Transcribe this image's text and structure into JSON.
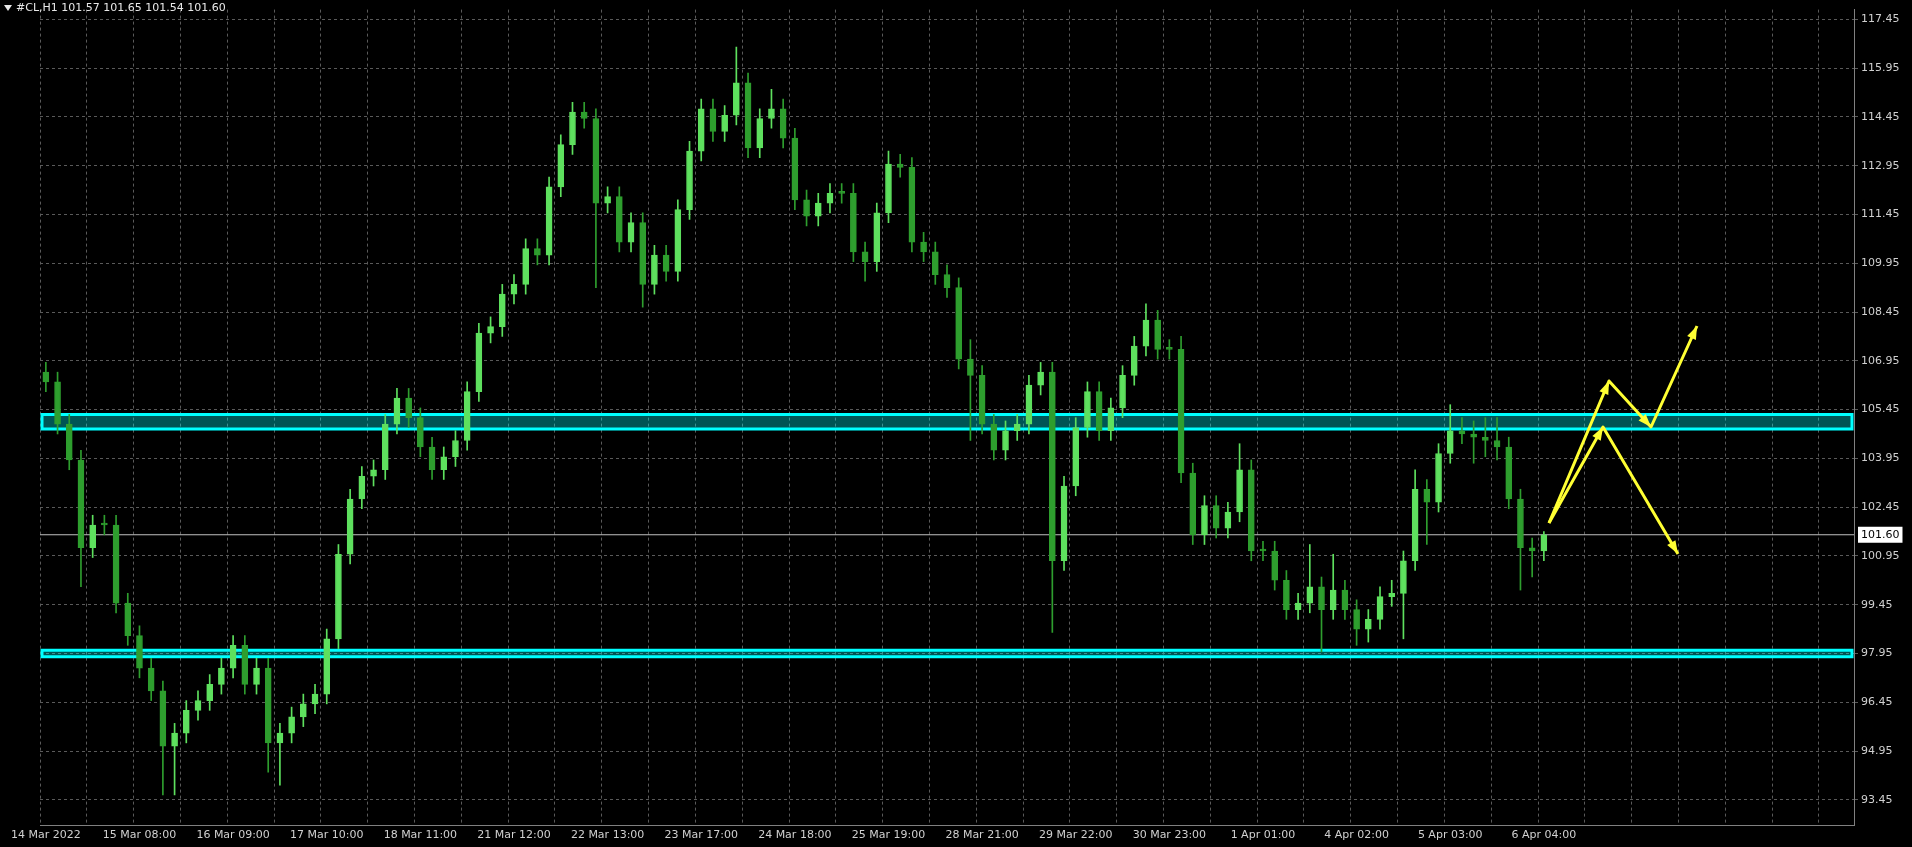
{
  "chart_data": {
    "type": "candlestick",
    "title": "#CL,H1 101.57 101.65 101.54 101.60",
    "categories": [
      "14 Mar 2022",
      null,
      null,
      null,
      null,
      null,
      null,
      null,
      "15 Mar 08:00",
      null,
      null,
      null,
      null,
      null,
      null,
      null,
      "16 Mar 09:00",
      null,
      null,
      null,
      null,
      null,
      null,
      null,
      "17 Mar 10:00",
      null,
      null,
      null,
      null,
      null,
      null,
      null,
      "18 Mar 11:00",
      null,
      null,
      null,
      null,
      null,
      null,
      null,
      "21 Mar 12:00",
      null,
      null,
      null,
      null,
      null,
      null,
      null,
      "22 Mar 13:00",
      null,
      null,
      null,
      null,
      null,
      null,
      null,
      "23 Mar 17:00",
      null,
      null,
      null,
      null,
      null,
      null,
      null,
      "24 Mar 18:00",
      null,
      null,
      null,
      null,
      null,
      null,
      null,
      "25 Mar 19:00",
      null,
      null,
      null,
      null,
      null,
      null,
      null,
      "28 Mar 21:00",
      null,
      null,
      null,
      null,
      null,
      null,
      null,
      "29 Mar 22:00",
      null,
      null,
      null,
      null,
      null,
      null,
      null,
      "30 Mar 23:00",
      null,
      null,
      null,
      null,
      null,
      null,
      null,
      "1 Apr 01:00",
      null,
      null,
      null,
      null,
      null,
      null,
      null,
      "4 Apr 02:00",
      null,
      null,
      null,
      null,
      null,
      null,
      null,
      "5 Apr 03:00",
      null,
      null,
      null,
      null,
      null,
      null,
      null,
      "6 Apr 04:00",
      null,
      null,
      null,
      null,
      null,
      null,
      null,
      null,
      null,
      null,
      null,
      null,
      null,
      null,
      null,
      null,
      null,
      null,
      null,
      null,
      null,
      null,
      null,
      null,
      null,
      null
    ],
    "ohlc": [
      [
        106.6,
        106.9,
        106.0,
        106.3
      ],
      [
        106.3,
        106.6,
        104.7,
        105.0
      ],
      [
        105.0,
        105.3,
        103.6,
        103.9
      ],
      [
        103.9,
        104.2,
        100.0,
        101.2
      ],
      [
        101.2,
        102.2,
        100.9,
        101.9
      ],
      [
        101.9,
        102.2,
        101.6,
        101.9
      ],
      [
        101.9,
        102.2,
        99.2,
        99.5
      ],
      [
        99.5,
        99.8,
        98.2,
        98.5
      ],
      [
        98.5,
        98.8,
        97.2,
        97.5
      ],
      [
        97.5,
        97.8,
        96.5,
        96.8
      ],
      [
        96.8,
        97.1,
        93.6,
        95.1
      ],
      [
        95.1,
        95.8,
        93.6,
        95.5
      ],
      [
        95.5,
        96.5,
        95.2,
        96.2
      ],
      [
        96.2,
        96.8,
        95.9,
        96.5
      ],
      [
        96.5,
        97.3,
        96.2,
        97.0
      ],
      [
        97.0,
        97.8,
        96.7,
        97.5
      ],
      [
        97.5,
        98.5,
        97.2,
        98.2
      ],
      [
        98.2,
        98.5,
        96.7,
        97.0
      ],
      [
        97.0,
        97.8,
        96.7,
        97.5
      ],
      [
        97.5,
        97.8,
        94.3,
        95.2
      ],
      [
        95.2,
        95.8,
        93.9,
        95.5
      ],
      [
        95.5,
        96.3,
        95.2,
        96.0
      ],
      [
        96.0,
        96.7,
        95.7,
        96.4
      ],
      [
        96.4,
        97.0,
        96.1,
        96.7
      ],
      [
        96.7,
        98.7,
        96.4,
        98.4
      ],
      [
        98.4,
        101.3,
        98.1,
        101.0
      ],
      [
        101.0,
        103.0,
        100.7,
        102.7
      ],
      [
        102.7,
        103.7,
        102.4,
        103.4
      ],
      [
        103.4,
        103.9,
        103.1,
        103.6
      ],
      [
        103.6,
        105.3,
        103.3,
        105.0
      ],
      [
        105.0,
        106.1,
        104.7,
        105.8
      ],
      [
        105.8,
        106.1,
        104.9,
        105.2
      ],
      [
        105.2,
        105.5,
        104.0,
        104.3
      ],
      [
        104.3,
        104.6,
        103.3,
        103.6
      ],
      [
        103.6,
        104.3,
        103.3,
        104.0
      ],
      [
        104.0,
        104.8,
        103.7,
        104.5
      ],
      [
        104.5,
        106.3,
        104.2,
        106.0
      ],
      [
        106.0,
        108.1,
        105.7,
        107.8
      ],
      [
        107.8,
        108.3,
        107.5,
        108.0
      ],
      [
        108.0,
        109.3,
        107.7,
        109.0
      ],
      [
        109.0,
        109.6,
        108.7,
        109.3
      ],
      [
        109.3,
        110.7,
        109.0,
        110.4
      ],
      [
        110.4,
        110.7,
        109.9,
        110.2
      ],
      [
        110.2,
        112.6,
        109.9,
        112.3
      ],
      [
        112.3,
        113.9,
        112.0,
        113.6
      ],
      [
        113.6,
        114.9,
        113.3,
        114.6
      ],
      [
        114.6,
        114.9,
        114.1,
        114.4
      ],
      [
        114.4,
        114.7,
        109.2,
        111.8
      ],
      [
        111.8,
        112.3,
        111.5,
        112.0
      ],
      [
        112.0,
        112.3,
        110.3,
        110.6
      ],
      [
        110.6,
        111.5,
        110.3,
        111.2
      ],
      [
        111.2,
        111.5,
        108.6,
        109.3
      ],
      [
        109.3,
        110.5,
        109.0,
        110.2
      ],
      [
        110.2,
        110.5,
        109.4,
        109.7
      ],
      [
        109.7,
        111.9,
        109.4,
        111.6
      ],
      [
        111.6,
        113.7,
        111.3,
        113.4
      ],
      [
        113.4,
        115.0,
        113.1,
        114.7
      ],
      [
        114.7,
        115.0,
        113.7,
        114.0
      ],
      [
        114.0,
        114.8,
        113.7,
        114.5
      ],
      [
        114.5,
        116.6,
        114.2,
        115.5
      ],
      [
        115.5,
        115.8,
        113.2,
        113.5
      ],
      [
        113.5,
        114.7,
        113.2,
        114.4
      ],
      [
        114.4,
        115.3,
        114.1,
        114.7
      ],
      [
        114.7,
        115.0,
        113.5,
        113.8
      ],
      [
        113.8,
        114.1,
        111.6,
        111.9
      ],
      [
        111.9,
        112.2,
        111.1,
        111.4
      ],
      [
        111.4,
        112.1,
        111.1,
        111.8
      ],
      [
        111.8,
        112.4,
        111.5,
        112.1
      ],
      [
        112.1,
        112.4,
        111.8,
        112.1
      ],
      [
        112.1,
        112.4,
        110.0,
        110.3
      ],
      [
        110.3,
        110.6,
        109.4,
        110.0
      ],
      [
        110.0,
        111.8,
        109.7,
        111.5
      ],
      [
        111.5,
        113.4,
        111.2,
        113.0
      ],
      [
        113.0,
        113.3,
        112.6,
        112.9
      ],
      [
        112.9,
        113.2,
        110.3,
        110.6
      ],
      [
        110.6,
        110.9,
        110.0,
        110.3
      ],
      [
        110.3,
        110.6,
        109.3,
        109.6
      ],
      [
        109.6,
        109.9,
        108.9,
        109.2
      ],
      [
        109.2,
        109.5,
        106.7,
        107.0
      ],
      [
        107.0,
        107.6,
        104.5,
        106.5
      ],
      [
        106.5,
        106.8,
        104.7,
        105.0
      ],
      [
        105.0,
        105.3,
        103.9,
        104.2
      ],
      [
        104.2,
        105.1,
        103.9,
        104.8
      ],
      [
        104.8,
        105.3,
        104.5,
        105.0
      ],
      [
        105.0,
        106.5,
        104.7,
        106.2
      ],
      [
        106.2,
        106.9,
        105.9,
        106.6
      ],
      [
        106.6,
        106.9,
        98.6,
        100.8
      ],
      [
        100.8,
        103.4,
        100.5,
        103.1
      ],
      [
        103.1,
        105.2,
        102.8,
        104.9
      ],
      [
        104.9,
        106.3,
        104.6,
        106.0
      ],
      [
        106.0,
        106.3,
        104.5,
        104.8
      ],
      [
        104.8,
        105.8,
        104.5,
        105.5
      ],
      [
        105.5,
        106.8,
        105.2,
        106.5
      ],
      [
        106.5,
        107.7,
        106.2,
        107.4
      ],
      [
        107.4,
        108.7,
        107.1,
        108.2
      ],
      [
        108.2,
        108.5,
        107.0,
        107.3
      ],
      [
        107.3,
        107.6,
        107.0,
        107.3
      ],
      [
        107.3,
        107.7,
        103.2,
        103.5
      ],
      [
        103.5,
        103.8,
        101.3,
        101.6
      ],
      [
        101.6,
        102.8,
        101.3,
        102.5
      ],
      [
        102.5,
        102.8,
        101.5,
        101.8
      ],
      [
        101.8,
        102.6,
        101.5,
        102.3
      ],
      [
        102.3,
        104.4,
        102.0,
        103.6
      ],
      [
        103.6,
        103.9,
        100.8,
        101.1
      ],
      [
        101.1,
        101.4,
        100.8,
        101.1
      ],
      [
        101.1,
        101.4,
        99.9,
        100.2
      ],
      [
        100.2,
        100.5,
        99.0,
        99.3
      ],
      [
        99.3,
        99.8,
        99.0,
        99.5
      ],
      [
        99.5,
        101.3,
        99.2,
        100.0
      ],
      [
        100.0,
        100.3,
        98.0,
        99.3
      ],
      [
        99.3,
        101.0,
        99.0,
        99.9
      ],
      [
        99.9,
        100.2,
        99.0,
        99.3
      ],
      [
        99.3,
        99.6,
        98.2,
        98.7
      ],
      [
        98.7,
        99.3,
        98.3,
        99.0
      ],
      [
        99.0,
        100.0,
        98.7,
        99.7
      ],
      [
        99.7,
        100.2,
        99.4,
        99.8
      ],
      [
        99.8,
        101.1,
        98.4,
        100.8
      ],
      [
        100.8,
        103.6,
        100.5,
        103.0
      ],
      [
        103.0,
        103.3,
        101.3,
        102.6
      ],
      [
        102.6,
        104.4,
        102.3,
        104.1
      ],
      [
        104.1,
        105.6,
        103.8,
        104.8
      ],
      [
        104.8,
        105.2,
        104.4,
        104.7
      ],
      [
        104.7,
        105.1,
        103.8,
        104.6
      ],
      [
        104.6,
        105.2,
        104.0,
        104.5
      ],
      [
        104.5,
        105.2,
        103.9,
        104.3
      ],
      [
        104.3,
        104.6,
        102.4,
        102.7
      ],
      [
        102.7,
        103.0,
        99.9,
        101.2
      ],
      [
        101.2,
        101.5,
        100.3,
        101.1
      ],
      [
        101.1,
        101.7,
        100.8,
        101.6
      ],
      null,
      null,
      null,
      null,
      null,
      null,
      null,
      null,
      null,
      null,
      null,
      null,
      null,
      null,
      null,
      null,
      null,
      null,
      null,
      null,
      null,
      null,
      null,
      null,
      null,
      null
    ],
    "colors": [
      "#2e9e2e",
      "#2e9e2e",
      "#2e9e2e",
      "#2e9e2e",
      "#5ee05e",
      "#2e9e2e",
      "#2e9e2e",
      "#2e9e2e",
      "#2e9e2e",
      "#2e9e2e",
      "#2e9e2e",
      "#5ee05e",
      "#5ee05e",
      "#5ee05e",
      "#5ee05e",
      "#5ee05e",
      "#5ee05e",
      "#2e9e2e",
      "#5ee05e",
      "#2e9e2e",
      "#5ee05e",
      "#5ee05e",
      "#5ee05e",
      "#5ee05e",
      "#5ee05e",
      "#5ee05e",
      "#5ee05e",
      "#5ee05e",
      "#5ee05e",
      "#5ee05e",
      "#5ee05e",
      "#2e9e2e",
      "#2e9e2e",
      "#2e9e2e",
      "#5ee05e",
      "#5ee05e",
      "#5ee05e",
      "#5ee05e",
      "#5ee05e",
      "#5ee05e",
      "#5ee05e",
      "#5ee05e",
      "#2e9e2e",
      "#5ee05e",
      "#5ee05e",
      "#5ee05e",
      "#2e9e2e",
      "#2e9e2e",
      "#5ee05e",
      "#2e9e2e",
      "#5ee05e",
      "#2e9e2e",
      "#5ee05e",
      "#2e9e2e",
      "#5ee05e",
      "#5ee05e",
      "#5ee05e",
      "#2e9e2e",
      "#5ee05e",
      "#5ee05e",
      "#2e9e2e",
      "#5ee05e",
      "#5ee05e",
      "#2e9e2e",
      "#2e9e2e",
      "#2e9e2e",
      "#5ee05e",
      "#5ee05e",
      "#2e9e2e",
      "#2e9e2e",
      "#2e9e2e",
      "#5ee05e",
      "#5ee05e",
      "#2e9e2e",
      "#2e9e2e",
      "#2e9e2e",
      "#2e9e2e",
      "#2e9e2e",
      "#2e9e2e",
      "#2e9e2e",
      "#2e9e2e",
      "#2e9e2e",
      "#5ee05e",
      "#5ee05e",
      "#5ee05e",
      "#5ee05e",
      "#2e9e2e",
      "#5ee05e",
      "#5ee05e",
      "#5ee05e",
      "#2e9e2e",
      "#5ee05e",
      "#5ee05e",
      "#5ee05e",
      "#5ee05e",
      "#2e9e2e",
      "#2e9e2e",
      "#2e9e2e",
      "#2e9e2e",
      "#5ee05e",
      "#2e9e2e",
      "#5ee05e",
      "#5ee05e",
      "#2e9e2e",
      "#2e9e2e",
      "#2e9e2e",
      "#2e9e2e",
      "#5ee05e",
      "#5ee05e",
      "#2e9e2e",
      "#5ee05e",
      "#2e9e2e",
      "#2e9e2e",
      "#5ee05e",
      "#5ee05e",
      "#5ee05e",
      "#5ee05e",
      "#5ee05e",
      "#2e9e2e",
      "#5ee05e",
      "#5ee05e",
      "#2e9e2e",
      "#2e9e2e",
      "#2e9e2e",
      "#2e9e2e",
      "#2e9e2e",
      "#2e9e2e",
      "#2e9e2e",
      "#5ee05e",
      null,
      null,
      null,
      null,
      null,
      null,
      null,
      null,
      null,
      null,
      null,
      null,
      null,
      null,
      null,
      null,
      null,
      null,
      null,
      null,
      null,
      null,
      null,
      null,
      null,
      null
    ],
    "ylim": [
      92.65,
      117.75
    ],
    "yticks": [
      93.45,
      94.95,
      96.45,
      97.95,
      99.45,
      100.95,
      102.45,
      103.95,
      105.45,
      106.95,
      108.45,
      109.95,
      111.45,
      112.95,
      114.45,
      115.95,
      117.45
    ],
    "grid": true,
    "bands": [
      {
        "axis": "y",
        "from": 104.85,
        "to": 105.3,
        "color": "#00ffff"
      },
      {
        "axis": "y",
        "from": 97.85,
        "to": 98.05,
        "color": "#00ffff"
      }
    ],
    "ref_lines": [
      {
        "axis": "y",
        "value": 101.6,
        "label": "101.60",
        "color": "#c0c0c0"
      }
    ]
  }
}
